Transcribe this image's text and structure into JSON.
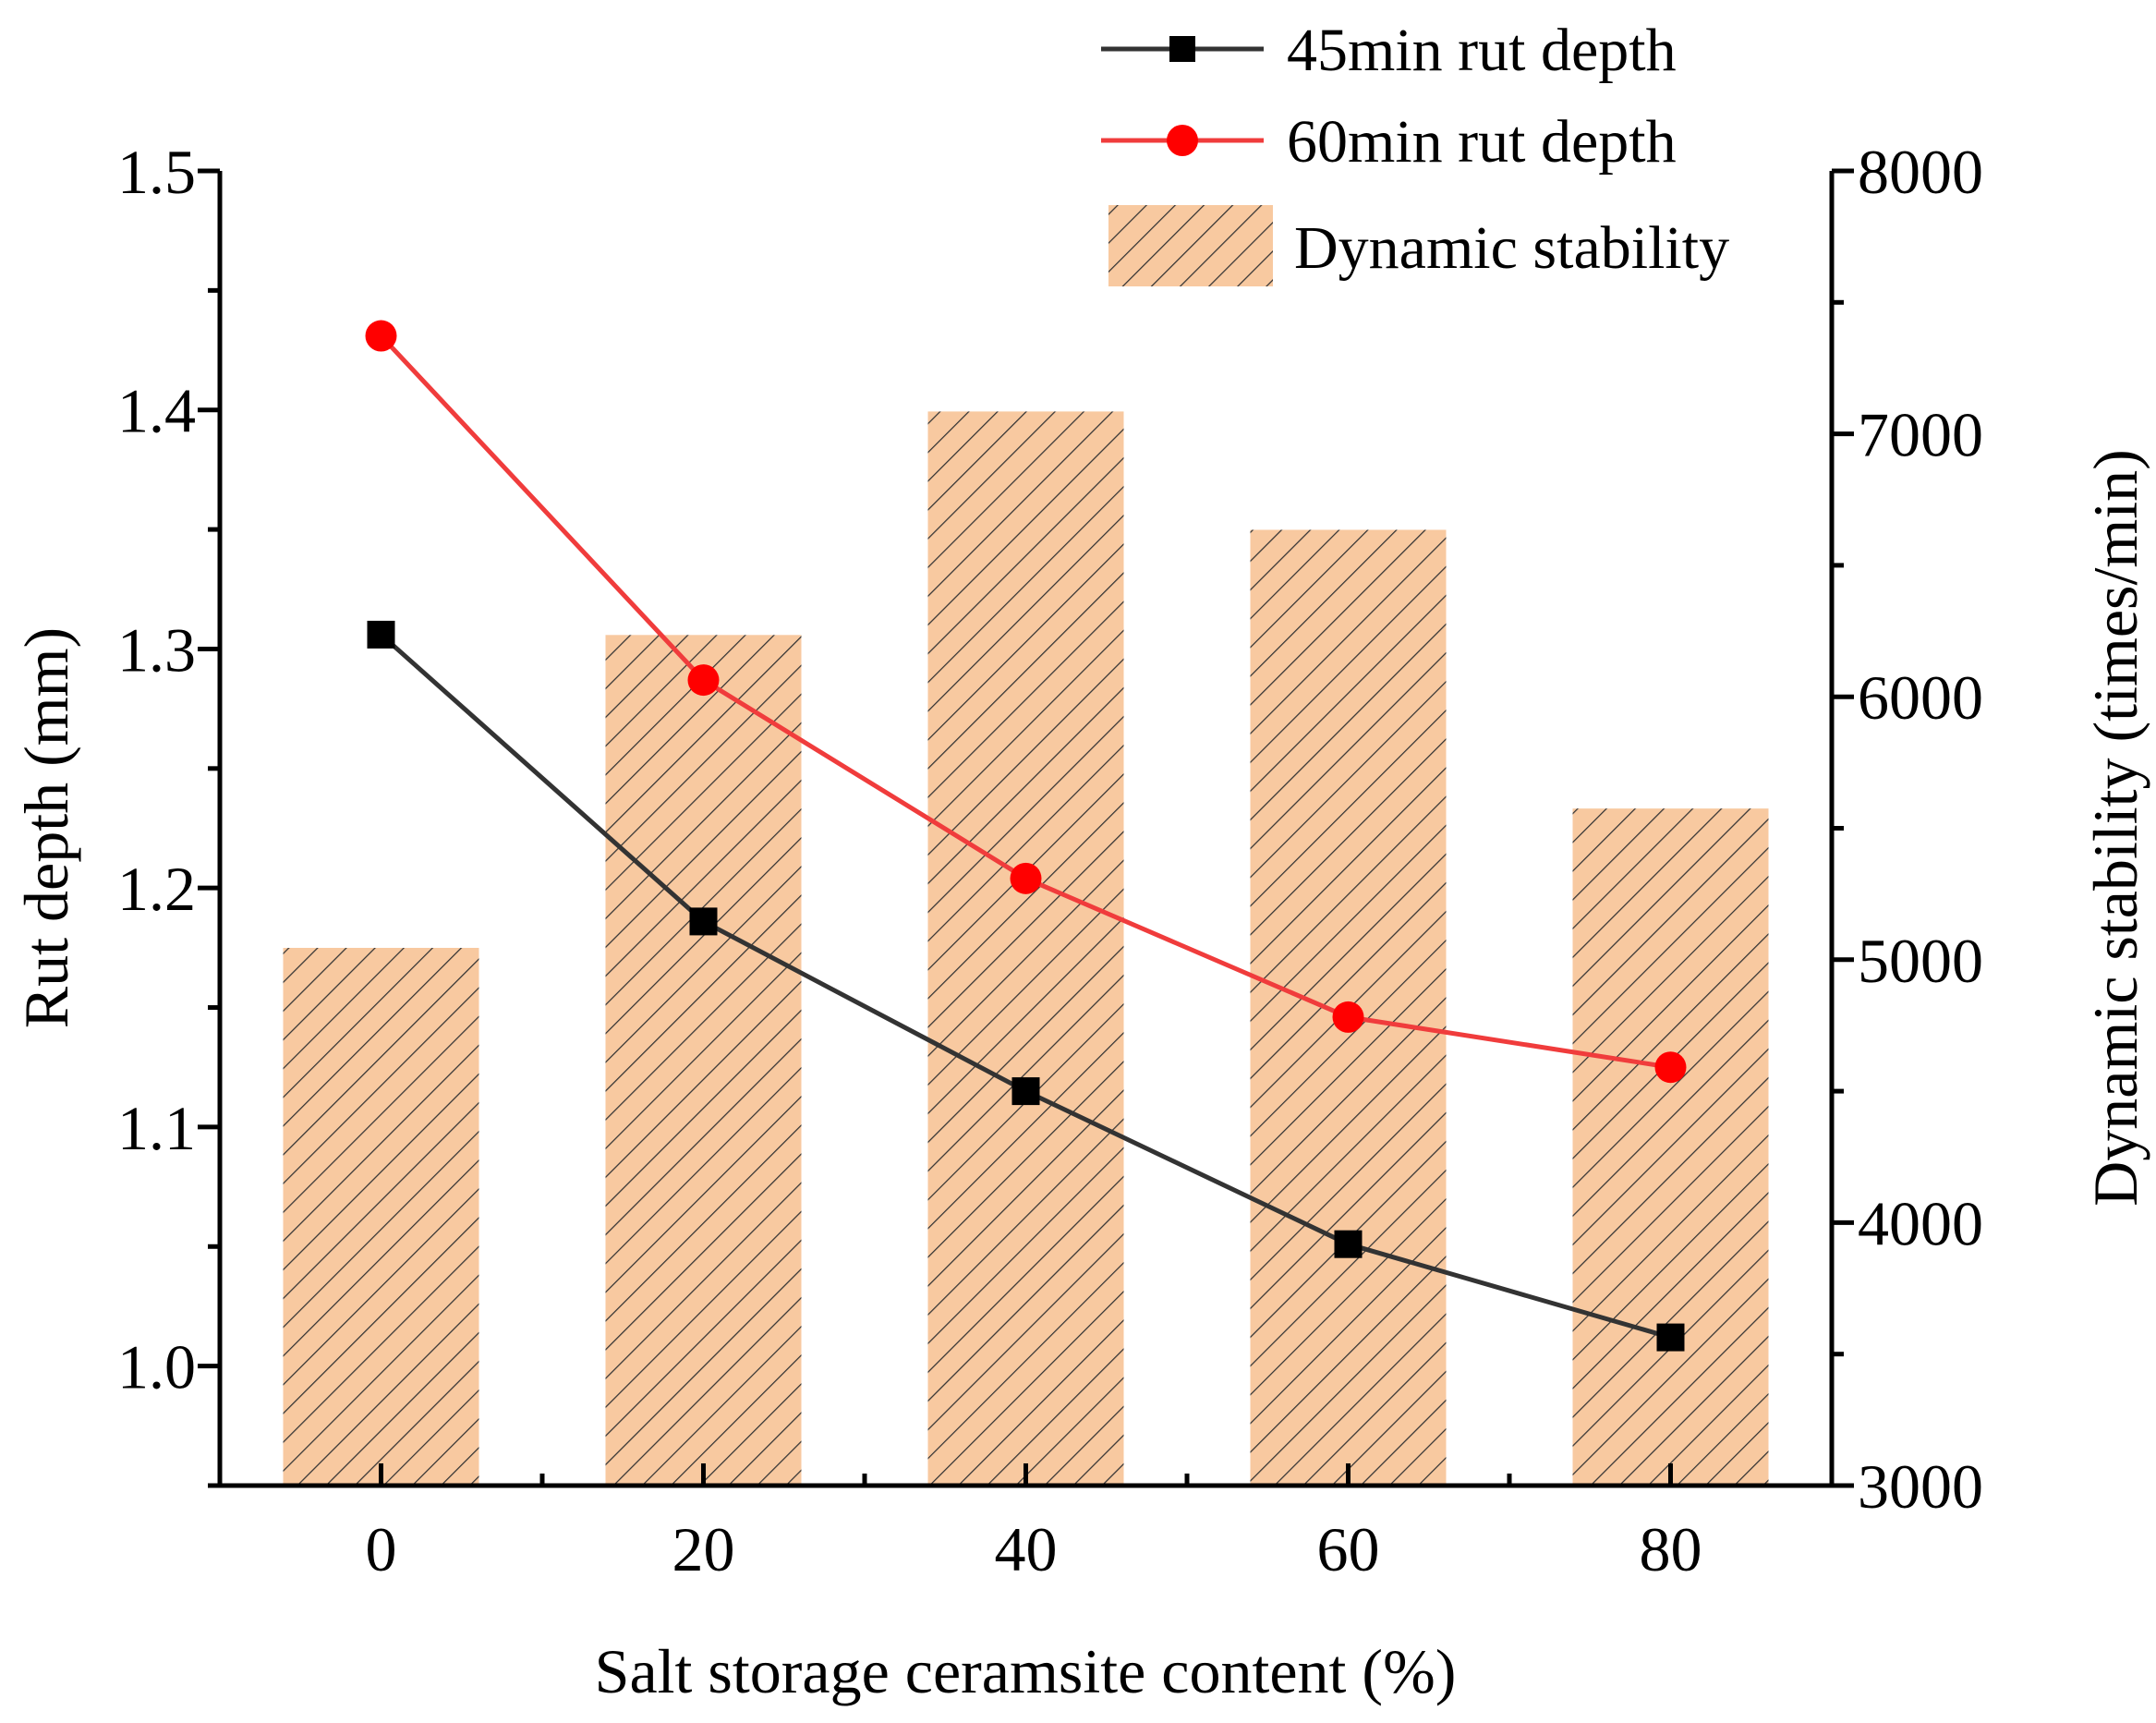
{
  "chart_data": {
    "type": "bar+line",
    "xlabel": "Salt storage ceramsite content (%)",
    "ylabel_left": "Rut depth (mm)",
    "ylabel_right": "Dynamic stability (times/min)",
    "categories": [
      "0",
      "20",
      "40",
      "60",
      "80"
    ],
    "x": [
      0,
      20,
      40,
      60,
      80
    ],
    "xlim": [
      -10,
      90
    ],
    "ylim_left": [
      0.95,
      1.5
    ],
    "ylim_right": [
      3000,
      8000
    ],
    "yticks_left": [
      "1.0",
      "1.1",
      "1.2",
      "1.3",
      "1.4",
      "1.5"
    ],
    "yticks_right": [
      "3000",
      "4000",
      "5000",
      "6000",
      "7000",
      "8000"
    ],
    "bars": {
      "name": "Dynamic stability",
      "axis": "right",
      "values": [
        5045,
        6235,
        7085,
        6635,
        5575
      ],
      "color": "#f8c9a0",
      "hatch_color": "#333333"
    },
    "series": [
      {
        "name": "45min rut depth",
        "axis": "left",
        "marker": "square",
        "color": "#333333",
        "marker_color": "#000000",
        "values": [
          1.306,
          1.186,
          1.115,
          1.051,
          1.012
        ]
      },
      {
        "name": "60min rut depth",
        "axis": "left",
        "marker": "circle",
        "color": "#f03c3c",
        "marker_color": "#ff0000",
        "values": [
          1.431,
          1.287,
          1.204,
          1.146,
          1.125
        ]
      }
    ],
    "legend": {
      "position": "top-right",
      "entries": [
        "45min rut depth",
        "60min rut depth",
        "Dynamic stability"
      ]
    }
  }
}
